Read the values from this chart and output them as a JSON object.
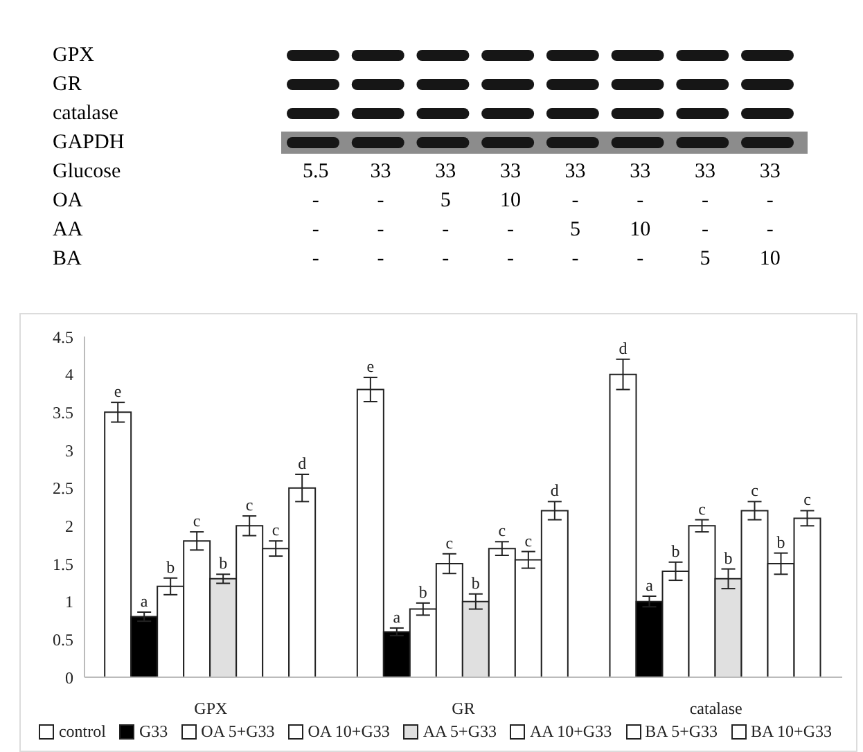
{
  "chart_data": [
    {
      "type": "other",
      "annotations": [
        "GPX",
        "GR",
        "catalase",
        "GAPDH",
        "Glucose 5.5 33 33 33 33 33 33 33",
        "OA - - 5 10 - - - -",
        "AA - - - - 5 10 - -",
        "BA - - - - - - 5 10"
      ]
    },
    {
      "type": "bar",
      "categories": [
        "GPX",
        "GR",
        "catalase"
      ],
      "series": [
        {
          "name": "control",
          "color": "#ffffff",
          "values": [
            3.5,
            3.8,
            4.0
          ],
          "errors": [
            0.13,
            0.16,
            0.2
          ],
          "value_labels": [
            "e",
            "e",
            "d"
          ]
        },
        {
          "name": "G33",
          "color": "#000000",
          "values": [
            0.8,
            0.6,
            1.0
          ],
          "errors": [
            0.06,
            0.05,
            0.07
          ],
          "value_labels": [
            "a",
            "a",
            "a"
          ]
        },
        {
          "name": "OA 5+G33",
          "color": "#ffffff",
          "values": [
            1.2,
            0.9,
            1.4
          ],
          "errors": [
            0.11,
            0.08,
            0.12
          ],
          "value_labels": [
            "b",
            "b",
            "b"
          ]
        },
        {
          "name": "OA 10+G33",
          "color": "#ffffff",
          "values": [
            1.8,
            1.5,
            2.0
          ],
          "errors": [
            0.12,
            0.13,
            0.08
          ],
          "value_labels": [
            "c",
            "c",
            "c"
          ]
        },
        {
          "name": "AA 5+G33",
          "color": "#e0e0e0",
          "values": [
            1.3,
            1.0,
            1.3
          ],
          "errors": [
            0.06,
            0.1,
            0.13
          ],
          "value_labels": [
            "b",
            "b",
            "b"
          ]
        },
        {
          "name": "AA 10+G33",
          "color": "#ffffff",
          "values": [
            2.0,
            1.7,
            2.2
          ],
          "errors": [
            0.13,
            0.09,
            0.12
          ],
          "value_labels": [
            "c",
            "c",
            "c"
          ]
        },
        {
          "name": "BA 5+G33",
          "color": "#ffffff",
          "values": [
            1.7,
            1.55,
            1.5
          ],
          "errors": [
            0.1,
            0.11,
            0.14
          ],
          "value_labels": [
            "c",
            "c",
            "b"
          ]
        },
        {
          "name": "BA 10+G33",
          "color": "#ffffff",
          "values": [
            2.5,
            2.2,
            2.1
          ],
          "errors": [
            0.18,
            0.12,
            0.1
          ],
          "value_labels": [
            "d",
            "d",
            "c"
          ]
        }
      ],
      "ylim": [
        0,
        4.5
      ],
      "yticks": [
        0,
        0.5,
        1,
        1.5,
        2,
        2.5,
        3,
        3.5,
        4,
        4.5
      ],
      "legend": "bottom",
      "grid": false
    }
  ]
}
